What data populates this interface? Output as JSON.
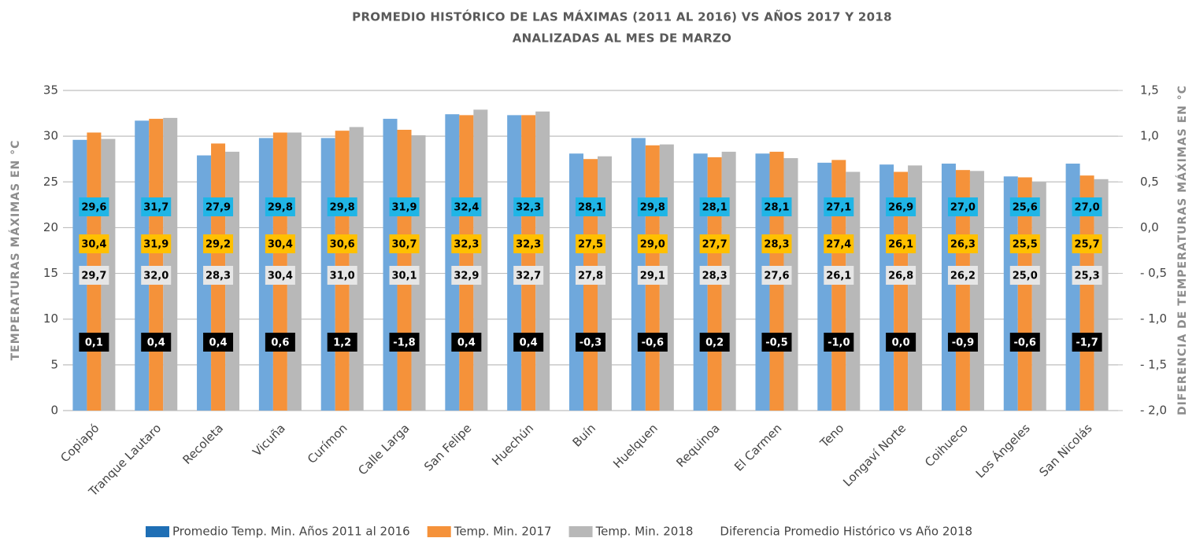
{
  "chart_data": {
    "type": "bar",
    "title": "PROMEDIO HISTÓRICO DE LAS MÁXIMAS (2011 AL 2016) VS AÑOS 2017 Y 2018",
    "subtitle": "ANALIZADAS AL MES DE MARZO",
    "y_label": "TEMPERATURAS MÁXIMAS EN °C",
    "y2_label": "DIFERENCIA DE TEMPERATURAS MÁXIMAS EN °C",
    "categories": [
      "Copiapó",
      "Tranque Lautaro",
      "Recoleta",
      "Vicuña",
      "Curímon",
      "Calle Larga",
      "San Felipe",
      "Huechún",
      "Buín",
      "Huelquen",
      "Requinoa",
      "El Carmen",
      "Teno",
      "Longaví Norte",
      "Coihueco",
      "Los Ángeles",
      "San Nicolás"
    ],
    "series": [
      {
        "name": "Promedio Temp. Min. Años 2011 al 2016",
        "color": "#6fa8dc",
        "legend_color": "#1f6fb5",
        "values": [
          29.6,
          31.7,
          27.9,
          29.8,
          29.8,
          31.9,
          32.4,
          32.3,
          28.1,
          29.8,
          28.1,
          28.1,
          27.1,
          26.9,
          27.0,
          25.6,
          27.0
        ],
        "value_labels": [
          "29,6",
          "31,7",
          "27,9",
          "29,8",
          "29,8",
          "31,9",
          "32,4",
          "32,3",
          "28,1",
          "29,8",
          "28,1",
          "28,1",
          "27,1",
          "26,9",
          "27,0",
          "25,6",
          "27,0"
        ]
      },
      {
        "name": "Temp. Min. 2017",
        "color": "#f5923a",
        "legend_color": "#f5923a",
        "values": [
          30.4,
          31.9,
          29.2,
          30.4,
          30.6,
          30.7,
          32.3,
          32.3,
          27.5,
          29.0,
          27.7,
          28.3,
          27.4,
          26.1,
          26.3,
          25.5,
          25.7
        ],
        "value_labels": [
          "30,4",
          "31,9",
          "29,2",
          "30,4",
          "30,6",
          "30,7",
          "32,3",
          "32,3",
          "27,5",
          "29,0",
          "27,7",
          "28,3",
          "27,4",
          "26,1",
          "26,3",
          "25,5",
          "25,7"
        ]
      },
      {
        "name": "Temp. Min. 2018",
        "color": "#b8b8b8",
        "legend_color": "#b8b8b8",
        "values": [
          29.7,
          32.0,
          28.3,
          30.4,
          31.0,
          30.1,
          32.9,
          32.7,
          27.8,
          29.1,
          28.3,
          27.6,
          26.1,
          26.8,
          26.2,
          25.0,
          25.3
        ],
        "value_labels": [
          "29,7",
          "32,0",
          "28,3",
          "30,4",
          "31,0",
          "30,1",
          "32,9",
          "32,7",
          "27,8",
          "29,1",
          "28,3",
          "27,6",
          "26,1",
          "26,8",
          "26,2",
          "25,0",
          "25,3"
        ]
      },
      {
        "name": "Diferencia Promedio Histórico vs Año 2018",
        "color": "#000000",
        "axis": "y2",
        "values": [
          0.1,
          0.4,
          0.4,
          0.6,
          1.2,
          -1.8,
          0.4,
          0.4,
          -0.3,
          -0.6,
          0.2,
          -0.5,
          -1.0,
          0.0,
          -0.9,
          -0.6,
          -1.7
        ],
        "value_labels": [
          "0,1",
          "0,4",
          "0,4",
          "0,6",
          "1,2",
          "-1,8",
          "0,4",
          "0,4",
          "-0,3",
          "-0,6",
          "0,2",
          "-0,5",
          "-1,0",
          "0,0",
          "-0,9",
          "-0,6",
          "-1,7"
        ]
      }
    ],
    "ylim": [
      0,
      35
    ],
    "yticks": [
      0,
      5,
      10,
      15,
      20,
      25,
      30,
      35
    ],
    "y2lim": [
      -2.0,
      1.5
    ],
    "y2ticks": [
      {
        "value": -2.0,
        "label": "- 2,0"
      },
      {
        "value": -1.5,
        "label": "- 1,5"
      },
      {
        "value": -1.0,
        "label": "- 1,0"
      },
      {
        "value": -0.5,
        "label": "- 0,5"
      },
      {
        "value": 0.0,
        "label": "0,0"
      },
      {
        "value": 0.5,
        "label": "0,5"
      },
      {
        "value": 1.0,
        "label": "1,0"
      },
      {
        "value": 1.5,
        "label": "1,5"
      }
    ],
    "grid": true,
    "legend": "bottom"
  }
}
